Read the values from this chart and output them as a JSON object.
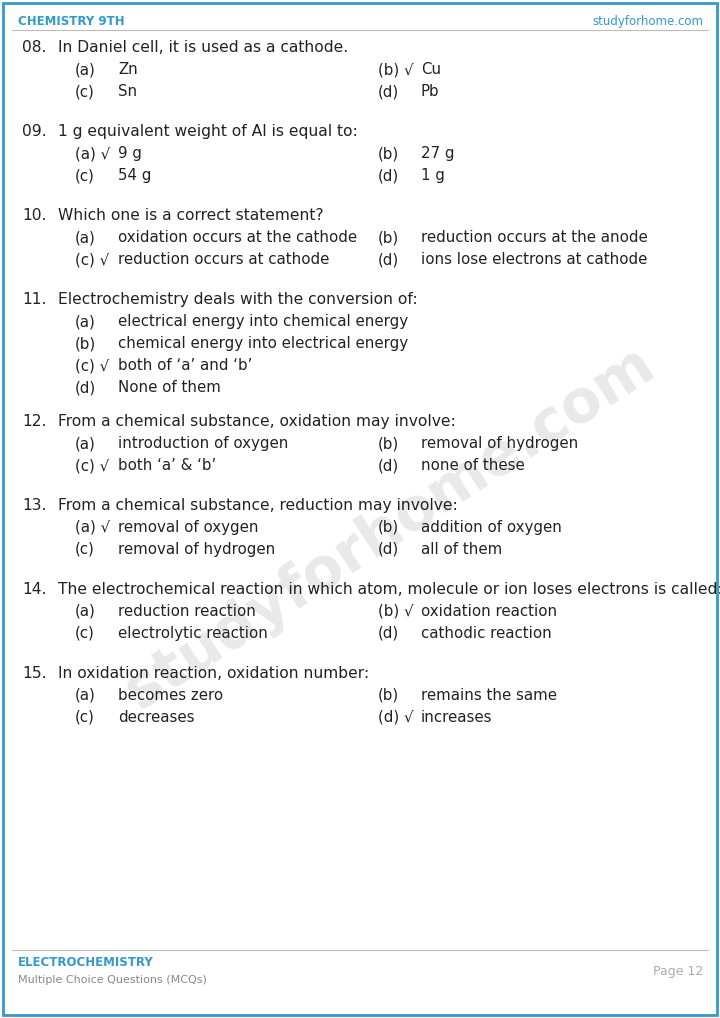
{
  "header_left": "CHEMISTRY 9TH",
  "header_right": "studyforhome.com",
  "header_color": "#3399CC",
  "footer_left_line1": "ELECTROCHEMISTRY",
  "footer_left_line2": "Multiple Choice Questions (MCQs)",
  "footer_right": "Page 12",
  "footer_color": "#3399CC",
  "bg_color": "#ffffff",
  "border_color": "#3399CC",
  "text_color": "#222222",
  "watermark": "studyforhome.com",
  "questions": [
    {
      "num": "08.",
      "question": "In Daniel cell, it is used as a cathode.",
      "type": "two_col",
      "options": [
        {
          "label": "(a)",
          "text": "Zn",
          "correct": false
        },
        {
          "label": "(b)",
          "text": "Cu",
          "correct": true
        },
        {
          "label": "(c)",
          "text": "Sn",
          "correct": false
        },
        {
          "label": "(d)",
          "text": "Pb",
          "correct": false
        }
      ]
    },
    {
      "num": "09.",
      "question": "1 g equivalent weight of Al is equal to:",
      "type": "two_col",
      "options": [
        {
          "label": "(a)",
          "text": "9 g",
          "correct": true
        },
        {
          "label": "(b)",
          "text": "27 g",
          "correct": false
        },
        {
          "label": "(c)",
          "text": "54 g",
          "correct": false
        },
        {
          "label": "(d)",
          "text": "1 g",
          "correct": false
        }
      ]
    },
    {
      "num": "10.",
      "question": "Which one is a correct statement?",
      "type": "two_col",
      "options": [
        {
          "label": "(a)",
          "text": "oxidation occurs at the cathode",
          "correct": false
        },
        {
          "label": "(b)",
          "text": "reduction occurs at the anode",
          "correct": false
        },
        {
          "label": "(c)",
          "text": "reduction occurs at cathode",
          "correct": true
        },
        {
          "label": "(d)",
          "text": "ions lose electrons at cathode",
          "correct": false
        }
      ]
    },
    {
      "num": "11.",
      "question": "Electrochemistry deals with the conversion of:",
      "type": "one_col",
      "options": [
        {
          "label": "(a)",
          "text": "electrical energy into chemical energy",
          "correct": false
        },
        {
          "label": "(b)",
          "text": "chemical energy into electrical energy",
          "correct": false
        },
        {
          "label": "(c)",
          "text": "both of ‘a’ and ‘b’",
          "correct": true
        },
        {
          "label": "(d)",
          "text": "None of them",
          "correct": false
        }
      ]
    },
    {
      "num": "12.",
      "question": "From a chemical substance, oxidation may involve:",
      "type": "two_col",
      "options": [
        {
          "label": "(a)",
          "text": "introduction of oxygen",
          "correct": false
        },
        {
          "label": "(b)",
          "text": "removal of hydrogen",
          "correct": false
        },
        {
          "label": "(c)",
          "text": "both ‘a’ & ‘b’",
          "correct": true
        },
        {
          "label": "(d)",
          "text": "none of these",
          "correct": false
        }
      ]
    },
    {
      "num": "13.",
      "question": "From a chemical substance, reduction may involve:",
      "type": "two_col",
      "options": [
        {
          "label": "(a)",
          "text": "removal of oxygen",
          "correct": true
        },
        {
          "label": "(b)",
          "text": "addition of oxygen",
          "correct": false
        },
        {
          "label": "(c)",
          "text": "removal of hydrogen",
          "correct": false
        },
        {
          "label": "(d)",
          "text": "all of them",
          "correct": false
        }
      ]
    },
    {
      "num": "14.",
      "question": "The electrochemical reaction in which atom, molecule or ion loses electrons is called:",
      "type": "two_col",
      "options": [
        {
          "label": "(a)",
          "text": "reduction reaction",
          "correct": false
        },
        {
          "label": "(b)",
          "text": "oxidation reaction",
          "correct": true
        },
        {
          "label": "(c)",
          "text": "electrolytic reaction",
          "correct": false
        },
        {
          "label": "(d)",
          "text": "cathodic reaction",
          "correct": false
        }
      ]
    },
    {
      "num": "15.",
      "question": "In oxidation reaction, oxidation number:",
      "type": "two_col",
      "options": [
        {
          "label": "(a)",
          "text": "becomes zero",
          "correct": false
        },
        {
          "label": "(b)",
          "text": "remains the same",
          "correct": false
        },
        {
          "label": "(c)",
          "text": "decreases",
          "correct": false
        },
        {
          "label": "(d)",
          "text": "increases",
          "correct": true
        }
      ]
    }
  ]
}
